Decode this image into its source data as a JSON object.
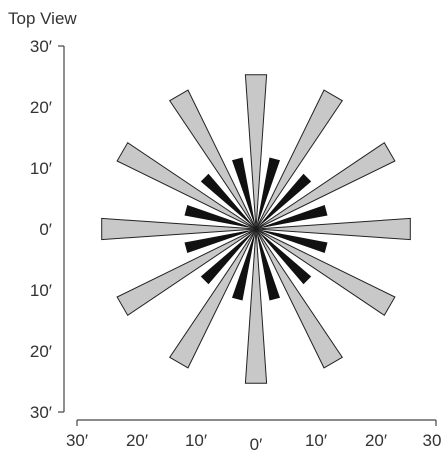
{
  "title": "Top View",
  "y_axis": {
    "ticks": [
      "30′",
      "20′",
      "10′",
      "0′",
      "10′",
      "20′",
      "30′"
    ]
  },
  "x_axis": {
    "ticks": [
      "30′",
      "20′",
      "10′",
      "0′",
      "10′",
      "20′",
      "30"
    ]
  },
  "units": "feet",
  "center": [
    0,
    0
  ],
  "long_beams": {
    "count": 12,
    "start_angle_deg": 0,
    "length_ft": 25.5,
    "end_width_ft": 3.5,
    "fill": "#c8c8c8",
    "stroke": "#222222"
  },
  "short_beams": {
    "count": 12,
    "start_angle_deg": 15,
    "length_ft": 12,
    "end_width_ft": 1.8,
    "fill": "#111111"
  },
  "colors": {
    "axis": "#444444",
    "text": "#333333"
  }
}
